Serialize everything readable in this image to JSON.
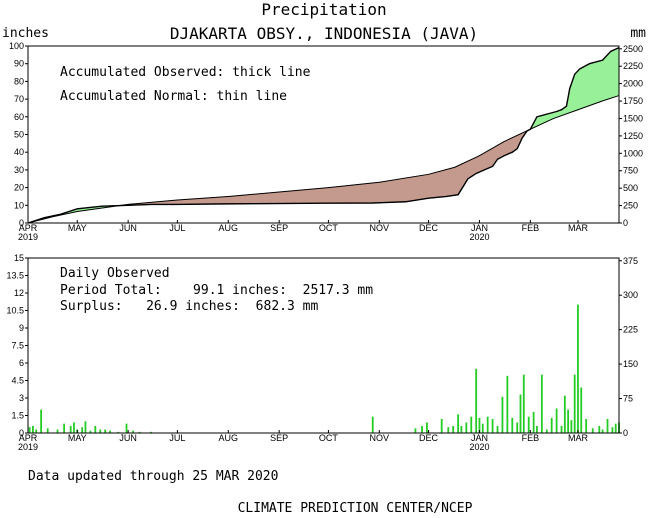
{
  "title": "Precipitation",
  "station": "DJAKARTA OBSY., INDONESIA (JAVA)",
  "left_unit": "inches",
  "right_unit": "mm",
  "footer_updated": "Data updated through 25 MAR 2020",
  "footer_credit": "CLIMATE PREDICTION CENTER/NCEP",
  "colors": {
    "surplus_fill": "#98f098",
    "deficit_fill": "#c49a8e",
    "daily_bar": "#22cc22",
    "line": "#000000"
  },
  "chart_data": [
    {
      "type": "area",
      "legend": [
        "Accumulated Observed: thick line",
        "Accumulated Normal: thin line"
      ],
      "x_ticks": [
        "APR",
        "MAY",
        "JUN",
        "JUL",
        "AUG",
        "SEP",
        "OCT",
        "NOV",
        "DEC",
        "JAN",
        "FEB",
        "MAR"
      ],
      "x_year_labels": [
        {
          "month": "APR",
          "year": "2019"
        },
        {
          "month": "JAN",
          "year": "2020"
        }
      ],
      "ylim_inches": [
        0,
        100
      ],
      "y_ticks_inches": [
        "0",
        "10",
        "20",
        "30",
        "40",
        "50",
        "60",
        "70",
        "80",
        "90",
        "100"
      ],
      "ylim_mm": [
        0,
        2540
      ],
      "y_ticks_mm": [
        "0",
        "250",
        "500",
        "750",
        "1000",
        "1250",
        "1500",
        "1750",
        "2000",
        "2250",
        "2500"
      ],
      "x_days": [
        0,
        30,
        61,
        91,
        122,
        153,
        183,
        214,
        244,
        275,
        306,
        335
      ],
      "days_total": 360,
      "normal": [
        [
          0,
          0
        ],
        [
          15,
          3.5
        ],
        [
          30,
          6.5
        ],
        [
          61,
          10.5
        ],
        [
          91,
          13
        ],
        [
          122,
          15
        ],
        [
          153,
          17.5
        ],
        [
          183,
          20
        ],
        [
          214,
          23
        ],
        [
          244,
          27.5
        ],
        [
          260,
          31.5
        ],
        [
          275,
          38
        ],
        [
          290,
          46
        ],
        [
          306,
          53
        ],
        [
          320,
          59
        ],
        [
          335,
          64
        ],
        [
          350,
          69
        ],
        [
          360,
          72
        ]
      ],
      "observed": [
        [
          0,
          0
        ],
        [
          10,
          3
        ],
        [
          20,
          5
        ],
        [
          30,
          8
        ],
        [
          45,
          9.5
        ],
        [
          61,
          10
        ],
        [
          75,
          10.5
        ],
        [
          90,
          10.5
        ],
        [
          120,
          10.8
        ],
        [
          150,
          11
        ],
        [
          180,
          11.2
        ],
        [
          210,
          11.3
        ],
        [
          230,
          12
        ],
        [
          244,
          14
        ],
        [
          255,
          15
        ],
        [
          262,
          16
        ],
        [
          268,
          25
        ],
        [
          273,
          28
        ],
        [
          278,
          30
        ],
        [
          283,
          32
        ],
        [
          286,
          36
        ],
        [
          290,
          38
        ],
        [
          295,
          40
        ],
        [
          298,
          42
        ],
        [
          301,
          48
        ],
        [
          304,
          52
        ],
        [
          306,
          53
        ],
        [
          310,
          60
        ],
        [
          318,
          62
        ],
        [
          322,
          63
        ],
        [
          325,
          64
        ],
        [
          328,
          66
        ],
        [
          330,
          76
        ],
        [
          333,
          84
        ],
        [
          336,
          87
        ],
        [
          342,
          90
        ],
        [
          350,
          92
        ],
        [
          355,
          97
        ],
        [
          360,
          99.1
        ]
      ]
    },
    {
      "type": "bar",
      "title": "Daily Observed",
      "period_total": "Period Total:    99.1 inches:  2517.3 mm",
      "surplus": "Surplus:   26.9 inches:  682.3 mm",
      "ylim_inches": [
        0,
        15
      ],
      "y_ticks_inches": [
        "0",
        "1.5",
        "3",
        "4.5",
        "6",
        "7.5",
        "9",
        "10.5",
        "12",
        "13.5",
        "15"
      ],
      "ylim_mm": [
        0,
        375
      ],
      "y_ticks_mm": [
        "0",
        "75",
        "150",
        "225",
        "300",
        "375"
      ],
      "days": [
        1,
        3,
        5,
        8,
        12,
        18,
        22,
        26,
        28,
        30,
        33,
        35,
        38,
        41,
        44,
        47,
        50,
        55,
        60,
        64,
        68,
        75,
        210,
        236,
        240,
        243,
        252,
        256,
        259,
        262,
        264,
        267,
        270,
        273,
        275,
        277,
        280,
        283,
        286,
        289,
        292,
        295,
        298,
        300,
        302,
        305,
        308,
        310,
        313,
        316,
        319,
        322,
        325,
        327,
        329,
        331,
        333,
        335,
        337,
        340,
        344,
        348,
        350,
        353,
        356,
        358,
        360
      ],
      "values": [
        0.5,
        0.6,
        0.3,
        2.0,
        0.4,
        0.3,
        0.8,
        0.6,
        0.9,
        0.3,
        0.5,
        1.0,
        0.2,
        0.6,
        0.3,
        0.3,
        0.2,
        0.1,
        0.8,
        0.2,
        0.1,
        0.1,
        1.4,
        0.4,
        0.6,
        0.9,
        1.2,
        0.5,
        0.6,
        1.6,
        0.6,
        0.9,
        1.4,
        5.5,
        1.3,
        0.8,
        1.4,
        1.2,
        0.6,
        3.1,
        4.9,
        1.3,
        0.9,
        3.3,
        5.0,
        1.4,
        1.8,
        0.6,
        5.0,
        0.3,
        1.3,
        2.1,
        0.6,
        3.2,
        2.0,
        1.1,
        5.0,
        11.0,
        3.9,
        1.2,
        0.4,
        0.6,
        0.3,
        1.2,
        0.5,
        0.8,
        0.9
      ]
    }
  ]
}
